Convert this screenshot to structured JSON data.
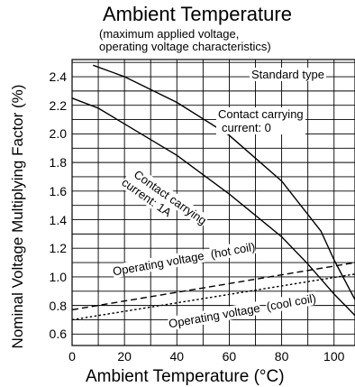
{
  "chart_data": {
    "type": "line",
    "title": "Ambient Temperature",
    "subtitle_line1": "(maximum applied voltage,",
    "subtitle_line2": "operating voltage characteristics)",
    "ylabel": "Nominal Voltage Multiplying Factor (%)",
    "xlabel": "Ambient Temperature (°C)",
    "xlim": [
      0,
      108
    ],
    "ylim": [
      0.52,
      2.52
    ],
    "x_ticks": [
      0,
      20,
      40,
      60,
      80,
      100
    ],
    "y_ticks": [
      0.6,
      0.8,
      1.0,
      1.2,
      1.4,
      1.6,
      1.8,
      2.0,
      2.2,
      2.4
    ],
    "grid": true,
    "badge": "Standard type",
    "series": [
      {
        "name": "Contact carrying current: 0",
        "style": "solid",
        "x": [
          8,
          20,
          40,
          60,
          80,
          95,
          100,
          108
        ],
        "y": [
          2.48,
          2.4,
          2.22,
          1.99,
          1.67,
          1.32,
          1.12,
          0.84
        ]
      },
      {
        "name": "Contact carrying current: 1A",
        "style": "solid",
        "x": [
          0,
          10,
          20,
          40,
          60,
          80,
          90,
          100,
          108
        ],
        "y": [
          2.25,
          2.18,
          2.07,
          1.85,
          1.58,
          1.28,
          1.09,
          0.88,
          0.73
        ]
      },
      {
        "name": "Operating voltage (hot coil)",
        "style": "dashed",
        "x": [
          0,
          108
        ],
        "y": [
          0.77,
          1.1
        ]
      },
      {
        "name": "Operating voltage (cool coil)",
        "style": "dotted",
        "x": [
          0,
          108
        ],
        "y": [
          0.7,
          1.02
        ]
      }
    ],
    "annotations": {
      "cc0_line1": "Contact carrying",
      "cc0_line2": "current: 0",
      "cc1_line1": "Contact carrying",
      "cc1_line2": "current: 1A",
      "hot_line1": "Operating voltage",
      "hot_line2": "(hot coil)",
      "cool_line1": "Operating voltage",
      "cool_line2": "(cool coil)"
    }
  }
}
